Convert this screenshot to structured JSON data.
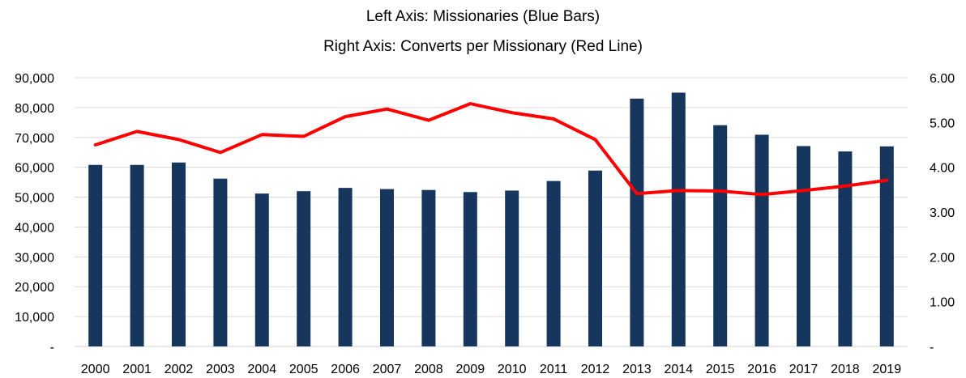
{
  "chart_data": {
    "type": "bar",
    "title_lines": [
      "Left Axis: Missionaries (Blue Bars)",
      "Right Axis: Converts per Missionary (Red Line)"
    ],
    "categories": [
      "2000",
      "2001",
      "2002",
      "2003",
      "2004",
      "2005",
      "2006",
      "2007",
      "2008",
      "2009",
      "2010",
      "2011",
      "2012",
      "2013",
      "2014",
      "2015",
      "2016",
      "2017",
      "2018",
      "2019"
    ],
    "series": [
      {
        "type": "bar",
        "axis": "left",
        "color": "#17365d",
        "values": [
          60800,
          60800,
          61600,
          56200,
          51200,
          52000,
          53100,
          52700,
          52400,
          51700,
          52200,
          55400,
          58900,
          83000,
          85000,
          74100,
          70900,
          67100,
          65300,
          67000
        ]
      },
      {
        "type": "line",
        "axis": "right",
        "color": "#ff0000",
        "values": [
          4.5,
          4.8,
          4.62,
          4.33,
          4.73,
          4.69,
          5.13,
          5.3,
          5.05,
          5.42,
          5.22,
          5.08,
          4.62,
          3.41,
          3.48,
          3.47,
          3.39,
          3.48,
          3.58,
          3.71
        ]
      }
    ],
    "left_axis": {
      "ylim": [
        0,
        90000
      ],
      "tick_labels": [
        "-",
        "10,000",
        "20,000",
        "30,000",
        "40,000",
        "50,000",
        "60,000",
        "70,000",
        "80,000",
        "90,000"
      ]
    },
    "right_axis": {
      "ylim": [
        0,
        6
      ],
      "tick_labels": [
        "-",
        "1.00",
        "2.00",
        "3.00",
        "4.00",
        "5.00",
        "6.00"
      ]
    },
    "grid": "horizontal",
    "legend": "none"
  }
}
